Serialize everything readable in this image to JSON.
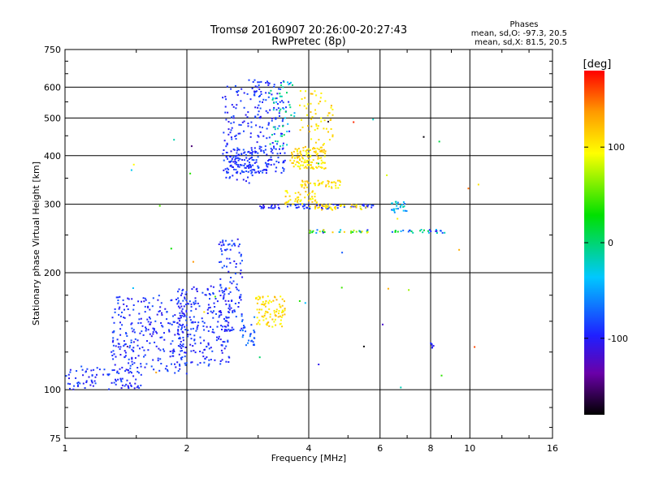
{
  "header": {
    "title_line1": "Tromsø 20160907 20:26:00-20:27:43",
    "title_line2": "RwPretec (8p)",
    "phase_title": "Phases",
    "phase_o": "mean, sd,O: -97.3, 20.5",
    "phase_x": "mean, sd,X:  81.5, 20.5"
  },
  "colorbar": {
    "unit_label": "[deg]",
    "range": [
      -180,
      180
    ],
    "ticks": [
      {
        "value": 100,
        "label": "100"
      },
      {
        "value": 0,
        "label": "0"
      },
      {
        "value": -100,
        "label": "-100"
      }
    ]
  },
  "chart_data": {
    "type": "scatter",
    "title": "Tromsø 20160907 20:26:00-20:27:43",
    "subtitle": "RwPretec (8p)",
    "xlabel": "Frequency [MHz]",
    "ylabel": "Stationary phase Virtual Height [km]",
    "x_scale": "log",
    "y_scale": "log",
    "xlim": [
      1,
      16
    ],
    "ylim": [
      75,
      750
    ],
    "grid": true,
    "x_ticks": [
      {
        "value": 1,
        "label": "1"
      },
      {
        "value": 2,
        "label": "2"
      },
      {
        "value": 4,
        "label": "4"
      },
      {
        "value": 6,
        "label": "6"
      },
      {
        "value": 8,
        "label": "8"
      },
      {
        "value": 10,
        "label": "10"
      },
      {
        "value": 16,
        "label": "16"
      }
    ],
    "y_ticks": [
      {
        "value": 75,
        "label": "75"
      },
      {
        "value": 100,
        "label": "100"
      },
      {
        "value": 200,
        "label": "200"
      },
      {
        "value": 300,
        "label": "300"
      },
      {
        "value": 400,
        "label": "400"
      },
      {
        "value": 500,
        "label": "500"
      },
      {
        "value": 600,
        "label": "600"
      },
      {
        "value": 750,
        "label": "750"
      }
    ],
    "color_variable": "phase [deg]",
    "clusters": [
      {
        "freq": [
          1.0,
          1.55
        ],
        "height": [
          100,
          115
        ],
        "phase": [
          -110,
          -80
        ],
        "count": 90
      },
      {
        "freq": [
          1.3,
          2.0
        ],
        "height": [
          110,
          175
        ],
        "phase": [
          -110,
          -80
        ],
        "count": 260
      },
      {
        "freq": [
          1.9,
          2.55
        ],
        "height": [
          115,
          185
        ],
        "phase": [
          -110,
          -80
        ],
        "count": 220
      },
      {
        "freq": [
          2.4,
          2.75
        ],
        "height": [
          140,
          245
        ],
        "phase": [
          -110,
          -80
        ],
        "count": 110
      },
      {
        "freq": [
          2.7,
          2.95
        ],
        "height": [
          130,
          155
        ],
        "phase": [
          -90,
          -60
        ],
        "count": 30
      },
      {
        "freq": [
          2.95,
          3.5
        ],
        "height": [
          145,
          175
        ],
        "phase": [
          90,
          125
        ],
        "count": 90
      },
      {
        "freq": [
          2.45,
          3.05
        ],
        "height": [
          340,
          630
        ],
        "phase": [
          -110,
          -80
        ],
        "count": 120
      },
      {
        "freq": [
          2.5,
          3.5
        ],
        "height": [
          360,
          420
        ],
        "phase": [
          -105,
          -80
        ],
        "count": 150
      },
      {
        "freq": [
          2.9,
          3.6
        ],
        "height": [
          420,
          630
        ],
        "phase": [
          -110,
          -80
        ],
        "count": 90
      },
      {
        "freq": [
          3.2,
          3.7
        ],
        "height": [
          420,
          620
        ],
        "phase": [
          -50,
          0
        ],
        "count": 45
      },
      {
        "freq": [
          3.6,
          4.4
        ],
        "height": [
          370,
          420
        ],
        "phase": [
          90,
          125
        ],
        "count": 120
      },
      {
        "freq": [
          3.8,
          4.6
        ],
        "height": [
          420,
          590
        ],
        "phase": [
          90,
          125
        ],
        "count": 60
      },
      {
        "freq": [
          3.8,
          4.8
        ],
        "height": [
          330,
          345
        ],
        "phase": [
          90,
          125
        ],
        "count": 45
      },
      {
        "freq": [
          3.5,
          4.2
        ],
        "height": [
          300,
          325
        ],
        "phase": [
          90,
          125
        ],
        "count": 45
      },
      {
        "freq": [
          3.0,
          5.8
        ],
        "height": [
          292,
          300
        ],
        "phase": [
          -110,
          -80
        ],
        "count": 70
      },
      {
        "freq": [
          4.0,
          5.6
        ],
        "height": [
          290,
          300
        ],
        "phase": [
          90,
          125
        ],
        "count": 40
      },
      {
        "freq": [
          4.0,
          5.6
        ],
        "height": [
          253,
          258
        ],
        "phase": [
          -110,
          125
        ],
        "count": 35
      },
      {
        "freq": [
          6.4,
          7.0
        ],
        "height": [
          285,
          305
        ],
        "phase": [
          -80,
          -20
        ],
        "count": 25
      },
      {
        "freq": [
          6.4,
          8.8
        ],
        "height": [
          253,
          258
        ],
        "phase": [
          -110,
          20
        ],
        "count": 30
      },
      {
        "freq": [
          8.0,
          8.2
        ],
        "height": [
          128,
          132
        ],
        "phase": [
          -110,
          -90
        ],
        "count": 6
      },
      {
        "freq": [
          1.4,
          11.0
        ],
        "height": [
          90,
          640
        ],
        "phase": [
          -180,
          180
        ],
        "count": 40
      }
    ]
  }
}
